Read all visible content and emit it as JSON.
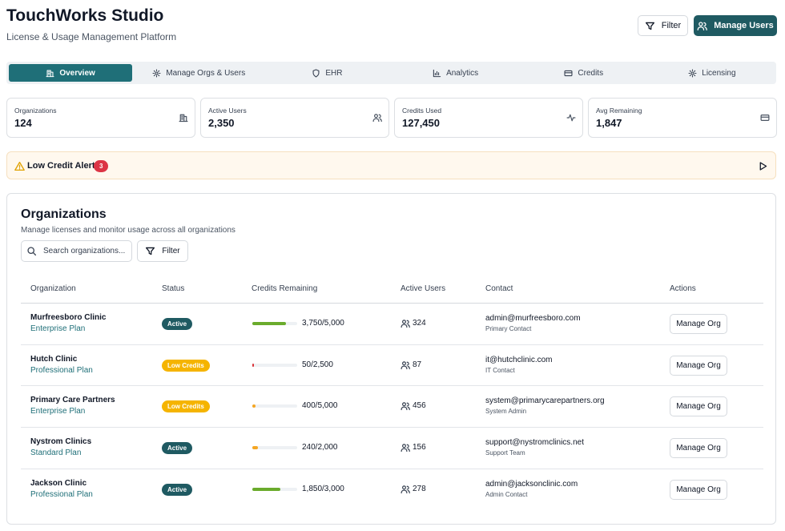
{
  "header": {
    "title": "TouchWorks Studio",
    "subtitle": "License & Usage Management Platform",
    "filter_button": "Filter",
    "manage_users_button": "Manage Users"
  },
  "tabs": {
    "items": [
      "Overview",
      "Manage Orgs & Users",
      "EHR",
      "Analytics",
      "Credits",
      "Licensing"
    ],
    "active": 0
  },
  "stats": [
    {
      "label": "Organizations",
      "value": "124"
    },
    {
      "label": "Active Users",
      "value": "2,350"
    },
    {
      "label": "Credits Used",
      "value": "127,450"
    },
    {
      "label": "Avg Remaining",
      "value": "1,847"
    }
  ],
  "alert": {
    "label": "Low Credit Alerts",
    "count": "3"
  },
  "organizations": {
    "title": "Organizations",
    "subtitle": "Manage licenses and monitor usage across all organizations",
    "search_placeholder": "Search organizations...",
    "filter_button": "Filter",
    "columns": [
      "Organization",
      "Status",
      "Credits Remaining",
      "Active Users",
      "Contact",
      "Actions"
    ],
    "rows": [
      {
        "name": "Murfreesboro Clinic",
        "plan": "Enterprise Plan",
        "status": "Active",
        "status_color": "#1f5a62",
        "credits_remaining": 3750,
        "credits_total": 5000,
        "credits_label": "3,750/5,000",
        "bar_color": "#6aab2c",
        "active_users": "324",
        "contact_email": "admin@murfreesboro.com",
        "contact_role": "Primary Contact",
        "action": "Manage Org"
      },
      {
        "name": "Hutch Clinic",
        "plan": "Professional Plan",
        "status": "Low Credits",
        "status_color": "#f5b400",
        "credits_remaining": 50,
        "credits_total": 2500,
        "credits_label": "50/2,500",
        "bar_color": "#d9343a",
        "active_users": "87",
        "contact_email": "it@hutchclinic.com",
        "contact_role": "IT Contact",
        "action": "Manage Org"
      },
      {
        "name": "Primary Care Partners",
        "plan": "Enterprise Plan",
        "status": "Low Credits",
        "status_color": "#f5b400",
        "credits_remaining": 400,
        "credits_total": 5000,
        "credits_label": "400/5,000",
        "bar_color": "#f5a623",
        "active_users": "456",
        "contact_email": "system@primarycarepartners.org",
        "contact_role": "System Admin",
        "action": "Manage Org"
      },
      {
        "name": "Nystrom Clinics",
        "plan": "Standard Plan",
        "status": "Active",
        "status_color": "#1f5a62",
        "credits_remaining": 240,
        "credits_total": 2000,
        "credits_label": "240/2,000",
        "bar_color": "#f5a623",
        "active_users": "156",
        "contact_email": "support@nystromclinics.net",
        "contact_role": "Support Team",
        "action": "Manage Org"
      },
      {
        "name": "Jackson Clinic",
        "plan": "Professional Plan",
        "status": "Active",
        "status_color": "#1f5a62",
        "credits_remaining": 1850,
        "credits_total": 3000,
        "credits_label": "1,850/3,000",
        "bar_color": "#6aab2c",
        "active_users": "278",
        "contact_email": "admin@jacksonclinic.com",
        "contact_role": "Admin Contact",
        "action": "Manage Org"
      }
    ]
  }
}
